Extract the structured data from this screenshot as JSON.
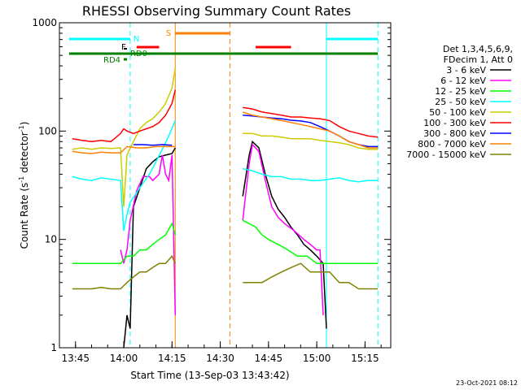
{
  "chart_data": {
    "type": "line",
    "title": "RHESSI Observing Summary Count Rates",
    "xlabel": "Start Time (13-Sep-03 13:43:42)",
    "ylabel": "Count Rate (s",
    "ylabel_sup1": "-1",
    "ylabel_mid": " detector",
    "ylabel_sup2": "-1",
    "ylabel_end": ")",
    "y_scale": "log",
    "xlim": [
      "13:40",
      "15:23"
    ],
    "ylim": [
      1,
      1000
    ],
    "x_ticks": [
      "13:45",
      "14:00",
      "14:15",
      "14:30",
      "14:45",
      "15:00",
      "15:15"
    ],
    "y_ticks": [
      {
        "value": 1,
        "label": "1"
      },
      {
        "value": 10,
        "label": "10"
      },
      {
        "value": 100,
        "label": "100"
      },
      {
        "value": 1000,
        "label": "1000"
      }
    ],
    "legend_header": [
      "Det 1,3,4,5,6,9,",
      "FDecim 1, Att 0"
    ],
    "series": [
      {
        "name": "3 - 6 keV",
        "color": "#000000",
        "points": [
          [
            "14:00",
            1
          ],
          [
            "14:01",
            2
          ],
          [
            "14:02",
            1.5
          ],
          [
            "14:03",
            20
          ],
          [
            "14:05",
            30
          ],
          [
            "14:07",
            45
          ],
          [
            "14:09",
            52
          ],
          [
            "14:11",
            58
          ],
          [
            "14:13",
            60
          ],
          [
            "14:15",
            62
          ],
          [
            "14:16",
            70
          ],
          [
            "14:37",
            25
          ],
          [
            "14:39",
            60
          ],
          [
            "14:40",
            80
          ],
          [
            "14:42",
            70
          ],
          [
            "14:44",
            40
          ],
          [
            "14:46",
            25
          ],
          [
            "14:48",
            19
          ],
          [
            "14:50",
            16
          ],
          [
            "14:52",
            13
          ],
          [
            "14:54",
            11
          ],
          [
            "14:56",
            9
          ],
          [
            "14:58",
            8
          ],
          [
            "15:00",
            7
          ],
          [
            "15:02",
            6
          ],
          [
            "15:03",
            1.5
          ]
        ]
      },
      {
        "name": "6 - 12 keV",
        "color": "#ff00ff",
        "points": [
          [
            "13:59",
            8
          ],
          [
            "14:00",
            6
          ],
          [
            "14:01",
            8
          ],
          [
            "14:02",
            15
          ],
          [
            "14:04",
            28
          ],
          [
            "14:06",
            38
          ],
          [
            "14:08",
            38
          ],
          [
            "14:09",
            35
          ],
          [
            "14:11",
            40
          ],
          [
            "14:12",
            60
          ],
          [
            "14:13",
            40
          ],
          [
            "14:14",
            35
          ],
          [
            "14:15",
            60
          ],
          [
            "14:16",
            2
          ],
          [
            "14:37",
            15
          ],
          [
            "14:39",
            50
          ],
          [
            "14:40",
            75
          ],
          [
            "14:42",
            65
          ],
          [
            "14:44",
            35
          ],
          [
            "14:46",
            20
          ],
          [
            "14:48",
            16
          ],
          [
            "14:50",
            14
          ],
          [
            "14:53",
            12
          ],
          [
            "14:56",
            10
          ],
          [
            "14:58",
            9
          ],
          [
            "15:00",
            8
          ],
          [
            "15:01",
            8
          ],
          [
            "15:02",
            2
          ]
        ]
      },
      {
        "name": "12 - 25 keV",
        "color": "#00ff00",
        "points": [
          [
            "13:44",
            6
          ],
          [
            "13:47",
            6
          ],
          [
            "13:50",
            6
          ],
          [
            "13:53",
            6
          ],
          [
            "13:56",
            6
          ],
          [
            "13:59",
            6
          ],
          [
            "14:01",
            7
          ],
          [
            "14:03",
            7
          ],
          [
            "14:05",
            8
          ],
          [
            "14:07",
            8
          ],
          [
            "14:09",
            9
          ],
          [
            "14:11",
            10
          ],
          [
            "14:13",
            11
          ],
          [
            "14:15",
            14
          ],
          [
            "14:16",
            11
          ],
          [
            "14:37",
            15
          ],
          [
            "14:39",
            14
          ],
          [
            "14:41",
            13
          ],
          [
            "14:43",
            11
          ],
          [
            "14:45",
            10
          ],
          [
            "14:48",
            9
          ],
          [
            "14:51",
            8
          ],
          [
            "14:54",
            7
          ],
          [
            "14:57",
            7
          ],
          [
            "15:00",
            6
          ],
          [
            "15:03",
            6
          ],
          [
            "15:06",
            6
          ],
          [
            "15:09",
            6
          ],
          [
            "15:12",
            6
          ],
          [
            "15:15",
            6
          ],
          [
            "15:19",
            6
          ]
        ]
      },
      {
        "name": "25 - 50 keV",
        "color": "#00ffff",
        "points": [
          [
            "13:44",
            38
          ],
          [
            "13:47",
            36
          ],
          [
            "13:50",
            35
          ],
          [
            "13:53",
            37
          ],
          [
            "13:56",
            36
          ],
          [
            "13:59",
            35
          ],
          [
            "14:00",
            12
          ],
          [
            "14:01",
            17
          ],
          [
            "14:02",
            22
          ],
          [
            "14:04",
            27
          ],
          [
            "14:06",
            33
          ],
          [
            "14:08",
            40
          ],
          [
            "14:10",
            52
          ],
          [
            "14:12",
            68
          ],
          [
            "14:14",
            90
          ],
          [
            "14:16",
            125
          ],
          [
            "14:37",
            45
          ],
          [
            "14:40",
            43
          ],
          [
            "14:43",
            40
          ],
          [
            "14:46",
            38
          ],
          [
            "14:49",
            38
          ],
          [
            "14:52",
            36
          ],
          [
            "14:55",
            36
          ],
          [
            "14:58",
            35
          ],
          [
            "15:01",
            35
          ],
          [
            "15:04",
            36
          ],
          [
            "15:07",
            37
          ],
          [
            "15:10",
            35
          ],
          [
            "15:13",
            34
          ],
          [
            "15:16",
            35
          ],
          [
            "15:19",
            35
          ]
        ]
      },
      {
        "name": "50 - 100 keV",
        "color": "#cccc00",
        "points": [
          [
            "13:44",
            68
          ],
          [
            "13:47",
            70
          ],
          [
            "13:50",
            68
          ],
          [
            "13:53",
            70
          ],
          [
            "13:56",
            69
          ],
          [
            "13:59",
            70
          ],
          [
            "14:00",
            20
          ],
          [
            "14:01",
            60
          ],
          [
            "14:03",
            80
          ],
          [
            "14:05",
            105
          ],
          [
            "14:07",
            120
          ],
          [
            "14:09",
            130
          ],
          [
            "14:11",
            150
          ],
          [
            "14:13",
            180
          ],
          [
            "14:15",
            250
          ],
          [
            "14:16",
            380
          ],
          [
            "14:37",
            95
          ],
          [
            "14:40",
            95
          ],
          [
            "14:43",
            90
          ],
          [
            "14:46",
            90
          ],
          [
            "14:49",
            88
          ],
          [
            "14:52",
            85
          ],
          [
            "14:55",
            85
          ],
          [
            "14:58",
            85
          ],
          [
            "15:01",
            82
          ],
          [
            "15:04",
            80
          ],
          [
            "15:07",
            78
          ],
          [
            "15:10",
            75
          ],
          [
            "15:13",
            70
          ],
          [
            "15:16",
            68
          ],
          [
            "15:19",
            68
          ]
        ]
      },
      {
        "name": "100 - 300 keV",
        "color": "#ff0000",
        "points": [
          [
            "13:44",
            85
          ],
          [
            "13:47",
            82
          ],
          [
            "13:50",
            80
          ],
          [
            "13:53",
            82
          ],
          [
            "13:56",
            80
          ],
          [
            "13:59",
            95
          ],
          [
            "14:00",
            105
          ],
          [
            "14:01",
            100
          ],
          [
            "14:03",
            95
          ],
          [
            "14:05",
            100
          ],
          [
            "14:07",
            105
          ],
          [
            "14:09",
            110
          ],
          [
            "14:11",
            120
          ],
          [
            "14:13",
            140
          ],
          [
            "14:15",
            180
          ],
          [
            "14:16",
            240
          ],
          [
            "14:37",
            165
          ],
          [
            "14:40",
            160
          ],
          [
            "14:43",
            150
          ],
          [
            "14:46",
            145
          ],
          [
            "14:49",
            140
          ],
          [
            "14:52",
            135
          ],
          [
            "14:55",
            135
          ],
          [
            "14:58",
            132
          ],
          [
            "15:01",
            130
          ],
          [
            "15:04",
            125
          ],
          [
            "15:07",
            110
          ],
          [
            "15:10",
            100
          ],
          [
            "15:13",
            95
          ],
          [
            "15:16",
            90
          ],
          [
            "15:19",
            88
          ]
        ]
      },
      {
        "name": "300 - 800 keV",
        "color": "#0000ff",
        "points": [
          [
            "14:03",
            75
          ],
          [
            "14:06",
            75
          ],
          [
            "14:09",
            74
          ],
          [
            "14:12",
            75
          ],
          [
            "14:15",
            74
          ],
          [
            "14:37",
            140
          ],
          [
            "14:40",
            138
          ],
          [
            "14:43",
            135
          ],
          [
            "14:46",
            132
          ],
          [
            "14:49",
            130
          ],
          [
            "14:52",
            126
          ],
          [
            "14:55",
            124
          ],
          [
            "14:58",
            120
          ],
          [
            "15:01",
            110
          ],
          [
            "15:04",
            100
          ],
          [
            "15:07",
            90
          ],
          [
            "15:10",
            80
          ],
          [
            "15:13",
            75
          ],
          [
            "15:16",
            72
          ],
          [
            "15:19",
            72
          ]
        ]
      },
      {
        "name": "800 - 7000 keV",
        "color": "#ff8000",
        "points": [
          [
            "13:44",
            65
          ],
          [
            "13:47",
            63
          ],
          [
            "13:50",
            62
          ],
          [
            "13:53",
            64
          ],
          [
            "13:56",
            63
          ],
          [
            "13:59",
            63
          ],
          [
            "14:01",
            72
          ],
          [
            "14:04",
            70
          ],
          [
            "14:07",
            70
          ],
          [
            "14:10",
            72
          ],
          [
            "14:13",
            72
          ],
          [
            "14:16",
            72
          ],
          [
            "14:37",
            150
          ],
          [
            "14:40",
            140
          ],
          [
            "14:43",
            135
          ],
          [
            "14:46",
            130
          ],
          [
            "14:49",
            125
          ],
          [
            "14:52",
            120
          ],
          [
            "14:55",
            115
          ],
          [
            "14:58",
            110
          ],
          [
            "15:01",
            105
          ],
          [
            "15:04",
            100
          ],
          [
            "15:07",
            90
          ],
          [
            "15:10",
            80
          ],
          [
            "15:13",
            75
          ],
          [
            "15:16",
            70
          ],
          [
            "15:19",
            70
          ]
        ]
      },
      {
        "name": "7000 - 15000 keV",
        "color": "#808000",
        "points": [
          [
            "13:44",
            3.5
          ],
          [
            "13:47",
            3.5
          ],
          [
            "13:50",
            3.5
          ],
          [
            "13:53",
            3.6
          ],
          [
            "13:56",
            3.5
          ],
          [
            "13:59",
            3.5
          ],
          [
            "14:01",
            4
          ],
          [
            "14:03",
            4.5
          ],
          [
            "14:05",
            5
          ],
          [
            "14:07",
            5
          ],
          [
            "14:09",
            5.5
          ],
          [
            "14:11",
            6
          ],
          [
            "14:13",
            6
          ],
          [
            "14:15",
            7
          ],
          [
            "14:16",
            6
          ],
          [
            "14:37",
            4
          ],
          [
            "14:40",
            4
          ],
          [
            "14:43",
            4
          ],
          [
            "14:46",
            4.5
          ],
          [
            "14:49",
            5
          ],
          [
            "14:52",
            5.5
          ],
          [
            "14:55",
            6
          ],
          [
            "14:58",
            5
          ],
          [
            "15:01",
            5
          ],
          [
            "15:04",
            5
          ],
          [
            "15:07",
            4
          ],
          [
            "15:10",
            4
          ],
          [
            "15:13",
            3.5
          ],
          [
            "15:16",
            3.5
          ],
          [
            "15:19",
            3.5
          ]
        ]
      }
    ],
    "status_bars": [
      {
        "label": "N",
        "color": "#00ffff",
        "segments": [
          [
            "13:43",
            "14:02"
          ],
          [
            "15:03",
            "15:19"
          ]
        ]
      },
      {
        "label": "",
        "color": "#ff0000",
        "segments": [
          [
            "14:04",
            "14:11"
          ],
          [
            "14:41",
            "14:52"
          ]
        ]
      },
      {
        "label": "S",
        "color": "#ff8000",
        "segments": [
          [
            "14:16",
            "14:33"
          ]
        ]
      },
      {
        "label": "F",
        "color": "#000000",
        "segments": [
          [
            "14:00",
            "14:01"
          ]
        ]
      },
      {
        "label": "RD0",
        "color": "#008000",
        "segments": [
          [
            "13:43",
            "15:19"
          ]
        ]
      },
      {
        "label": "RD4",
        "color": "#008000",
        "segments": [
          [
            "14:00",
            "14:01"
          ]
        ]
      }
    ],
    "vertical_lines": [
      {
        "time": "14:02",
        "color": "#00ffff",
        "dashed": true
      },
      {
        "time": "14:16",
        "color": "#ff8000",
        "dashed": false
      },
      {
        "time": "14:33",
        "color": "#ff8000",
        "dashed": true
      },
      {
        "time": "15:03",
        "color": "#00ffff",
        "dashed": false
      },
      {
        "time": "15:19",
        "color": "#00ffff",
        "dashed": true
      }
    ],
    "timestamp": "23-Oct-2021 08:12"
  }
}
